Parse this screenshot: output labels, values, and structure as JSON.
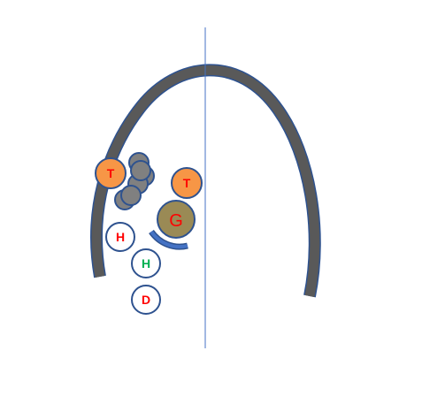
{
  "colors": {
    "arc": "#595959",
    "arc_edge": "#2e528f",
    "centerline": "#4472c4",
    "ring": "#2e528f",
    "token_orange": "#f79646",
    "token_gray": "#808080",
    "goal_fill": "#9a8a55",
    "white": "#ffffff",
    "red_text": "#ff0000",
    "green_text": "#00b050"
  },
  "tokens": {
    "t_left": "T",
    "t_right": "T",
    "goal": "G",
    "h_red": "H",
    "h_green": "H",
    "d": "D"
  }
}
